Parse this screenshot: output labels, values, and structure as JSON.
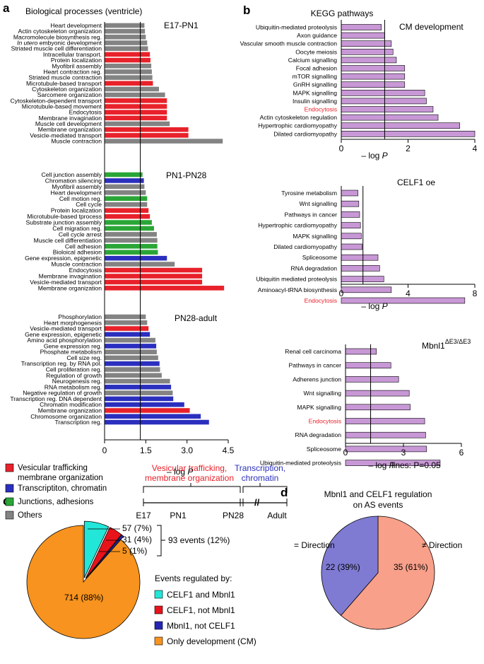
{
  "panel_labels": {
    "a": "a",
    "b": "b",
    "c": "c",
    "d": "d"
  },
  "colors": {
    "vesicular": "#e8212a",
    "transcription": "#2b2fbe",
    "junction": "#2aa637",
    "others": "#838383",
    "kegg": "#c898d6",
    "kegg_highlight": "#e8212a",
    "pie_cyan": "#22e6d7",
    "pie_red": "#e8131a",
    "pie_blue": "#2626b4",
    "pie_orange": "#f7931e",
    "pie_purple": "#7f7bd3",
    "pie_salmon": "#f8a08a"
  },
  "panel_a": {
    "title": "Biological processes (ventricle)",
    "xlabel": "– log P",
    "xlim": [
      0,
      4.5
    ],
    "ticks": [
      0,
      1.5,
      3.0,
      4.5
    ],
    "tick_labels": [
      "0",
      "1.5",
      "3.0",
      "4.5"
    ],
    "threshold": 1.3,
    "legend": [
      {
        "label": "Vesicular trafficking membrane organization",
        "line1": "Vesicular trafficking",
        "line2": "membrane organization",
        "cat": "vesicular"
      },
      {
        "label": "Transcriptiton, chromatin",
        "line1": "Transcriptiton, chromatin",
        "line2": "",
        "cat": "transcription"
      },
      {
        "label": "Junctions, adhesions",
        "line1": "Junctions, adhesions",
        "line2": "",
        "cat": "junction"
      },
      {
        "label": "Others",
        "line1": "Others",
        "line2": "",
        "cat": "others"
      }
    ],
    "timeline": {
      "red_label_1": "Vesicular trafficking,",
      "red_label_2": "membrane organization",
      "blue_label_1": "Transcription,",
      "blue_label_2": "chromatin",
      "stages": [
        "E17",
        "PN1",
        "PN28",
        "Adult"
      ],
      "break_mark": "//"
    },
    "groups": [
      {
        "name": "E17-PN1",
        "bars": [
          {
            "label": "Heart development",
            "value": 1.45,
            "cat": "others"
          },
          {
            "label": "Actin cytoskeleton organization",
            "value": 1.47,
            "cat": "others"
          },
          {
            "label": "Macromolecule biosynthesis reg.",
            "value": 1.5,
            "cat": "others"
          },
          {
            "label": "In utero embyonic development",
            "label_prefix": "In utero",
            "label_suffix": " embyonic development",
            "value": 1.55,
            "cat": "others"
          },
          {
            "label": "Striated muscle cell differentiation",
            "value": 1.58,
            "cat": "others"
          },
          {
            "label": "Intracellular transport.",
            "value": 1.65,
            "cat": "vesicular"
          },
          {
            "label": "Protein localization",
            "value": 1.67,
            "cat": "vesicular"
          },
          {
            "label": "Myofibril assembly",
            "value": 1.7,
            "cat": "others"
          },
          {
            "label": "Heart contraction reg.",
            "value": 1.72,
            "cat": "others"
          },
          {
            "label": "Striated muscle contraction",
            "value": 1.74,
            "cat": "others"
          },
          {
            "label": "Microtubule-based transport",
            "value": 1.76,
            "cat": "vesicular"
          },
          {
            "label": "Cytoskeleton organization",
            "value": 1.98,
            "cat": "others"
          },
          {
            "label": "Sarcomere organization",
            "value": 2.2,
            "cat": "others"
          },
          {
            "label": "Cytoskeleton-dependent transport",
            "value": 2.27,
            "cat": "vesicular"
          },
          {
            "label": "Microtubule-based movement",
            "value": 2.27,
            "cat": "vesicular"
          },
          {
            "label": "Endocytosis",
            "value": 2.27,
            "cat": "vesicular"
          },
          {
            "label": "Membrane invagination",
            "value": 2.27,
            "cat": "vesicular"
          },
          {
            "label": "Muscle cell development",
            "value": 2.37,
            "cat": "others"
          },
          {
            "label": "Membrane organization",
            "value": 3.05,
            "cat": "vesicular"
          },
          {
            "label": "Vesicle-mediated transport",
            "value": 3.05,
            "cat": "vesicular"
          },
          {
            "label": "Muscle contraction",
            "value": 4.3,
            "cat": "others"
          }
        ]
      },
      {
        "name": "PN1-PN28",
        "bars": [
          {
            "label": "Cell junction assembly",
            "value": 1.38,
            "cat": "junction"
          },
          {
            "label": "Chromation silencing",
            "value": 1.43,
            "cat": "transcription"
          },
          {
            "label": "Myofibril assembly",
            "value": 1.45,
            "cat": "others"
          },
          {
            "label": "Heart development",
            "value": 1.5,
            "cat": "others"
          },
          {
            "label": "Cell motion reg.",
            "value": 1.55,
            "cat": "junction"
          },
          {
            "label": "Cell cycle",
            "value": 1.55,
            "cat": "others"
          },
          {
            "label": "Protein localization",
            "value": 1.6,
            "cat": "vesicular"
          },
          {
            "label": "Microtubule-based tprocess",
            "value": 1.65,
            "cat": "vesicular"
          },
          {
            "label": "Substrate junction assembly",
            "value": 1.72,
            "cat": "junction"
          },
          {
            "label": "Cell migration reg.",
            "value": 1.8,
            "cat": "junction"
          },
          {
            "label": "Cell cycle arrest",
            "value": 1.9,
            "cat": "others"
          },
          {
            "label": "Muscle cell differentiation",
            "value": 1.92,
            "cat": "others"
          },
          {
            "label": "Cell adhesion",
            "value": 1.92,
            "cat": "junction"
          },
          {
            "label": "Bioloical adhesion",
            "value": 1.94,
            "cat": "junction"
          },
          {
            "label": "Gene expression, epigenetic",
            "value": 2.27,
            "cat": "transcription"
          },
          {
            "label": "Muscle contraction",
            "value": 2.55,
            "cat": "others"
          },
          {
            "label": "Endocytosis",
            "value": 3.55,
            "cat": "vesicular"
          },
          {
            "label": "Membrane invagination",
            "value": 3.55,
            "cat": "vesicular"
          },
          {
            "label": "Vesicle-mediated transport",
            "value": 3.55,
            "cat": "vesicular"
          },
          {
            "label": "Membrane organization",
            "value": 4.35,
            "cat": "vesicular"
          }
        ]
      },
      {
        "name": "PN28-adult",
        "bars": [
          {
            "label": "Phosphorylation",
            "value": 1.5,
            "cat": "others"
          },
          {
            "label": "Heart morphogenesis",
            "value": 1.55,
            "cat": "others"
          },
          {
            "label": "Vesicle-mediated transport",
            "value": 1.6,
            "cat": "vesicular"
          },
          {
            "label": "Gene expression, epigenetic",
            "value": 1.65,
            "cat": "transcription"
          },
          {
            "label": "Amino acid phosphorylation",
            "value": 1.85,
            "cat": "others"
          },
          {
            "label": "Gene expression reg.",
            "value": 1.88,
            "cat": "transcription"
          },
          {
            "label": "Phosphate metabolism",
            "value": 1.9,
            "cat": "others"
          },
          {
            "label": "Cell size reg.",
            "value": 1.95,
            "cat": "others"
          },
          {
            "label": "Transcription reg. by RNA pol.",
            "value": 2.0,
            "cat": "transcription"
          },
          {
            "label": "Cell proliferation reg.",
            "value": 2.02,
            "cat": "others"
          },
          {
            "label": "Regulation of growth",
            "value": 2.08,
            "cat": "others"
          },
          {
            "label": "Neurogenesis reg.",
            "value": 2.38,
            "cat": "others"
          },
          {
            "label": "RNA metabolism reg.",
            "value": 2.42,
            "cat": "transcription"
          },
          {
            "label": "Negative regulation of growth",
            "value": 2.48,
            "cat": "others"
          },
          {
            "label": "Transcription reg. DNA dependent",
            "value": 2.5,
            "cat": "transcription"
          },
          {
            "label": "Chromatin modification",
            "value": 2.9,
            "cat": "transcription"
          },
          {
            "label": "Membrane organization",
            "value": 3.1,
            "cat": "vesicular"
          },
          {
            "label": "Chromosome organization",
            "value": 3.5,
            "cat": "transcription"
          },
          {
            "label": "Transcription reg.",
            "value": 3.8,
            "cat": "transcription"
          }
        ]
      }
    ]
  },
  "panel_b": {
    "title": "KEGG pathways",
    "xlabel": "– log P",
    "threshold": 1.3,
    "note": "lines: P=0.05",
    "charts": [
      {
        "name": "CM development",
        "xlim": [
          0,
          4
        ],
        "ticks": [
          0,
          2,
          4
        ],
        "tick_labels": [
          "0",
          "2",
          "4"
        ],
        "bars": [
          {
            "label": "Ubiquitin-mediated proteolysis",
            "value": 1.2
          },
          {
            "label": "Axon guidance",
            "value": 1.3
          },
          {
            "label": "Vascular smooth muscle contraction",
            "value": 1.5
          },
          {
            "label": "Oocyte meiosis",
            "value": 1.55
          },
          {
            "label": "Calcium signalling",
            "value": 1.65
          },
          {
            "label": "Focal adhesion",
            "value": 1.9
          },
          {
            "label": "mTOR signalling",
            "value": 1.9
          },
          {
            "label": "GnRH signalling",
            "value": 1.9
          },
          {
            "label": "MAPK signalling",
            "value": 2.5
          },
          {
            "label": "Insulin signalling",
            "value": 2.55
          },
          {
            "label": "Endocytosis",
            "value": 2.75,
            "highlight": true
          },
          {
            "label": "Actin cytoskeleton regulation",
            "value": 2.9
          },
          {
            "label": "Hypertrophic cardiomyopathy",
            "value": 3.55
          },
          {
            "label": "Dilated cardiomyopathy",
            "value": 4.0
          }
        ]
      },
      {
        "name": "CELF1 oe",
        "xlim": [
          0,
          8
        ],
        "ticks": [
          0,
          4,
          8
        ],
        "tick_labels": [
          "0",
          "4",
          "8"
        ],
        "bars": [
          {
            "label": "Tyrosine metabolism",
            "value": 1.0
          },
          {
            "label": "Wnt signalling",
            "value": 1.05
          },
          {
            "label": "Pathways in cancer",
            "value": 1.1
          },
          {
            "label": "Hypertrophic cardiomyopathy",
            "value": 1.15
          },
          {
            "label": "MAPK signalling",
            "value": 1.2
          },
          {
            "label": "Dilated cardiomyopathy",
            "value": 1.25
          },
          {
            "label": "Spliceosome",
            "value": 2.2
          },
          {
            "label": "RNA degradation",
            "value": 2.3
          },
          {
            "label": "Ubiquitin mediated proteolysis",
            "value": 2.55
          },
          {
            "label": "Aminoacyl-tRNA biosynthesis",
            "value": 3.0
          },
          {
            "label": "Endocytosis",
            "value": 7.4,
            "highlight": true
          }
        ]
      },
      {
        "name": "Mbnl1",
        "name_sup": "ΔE3/ΔE3",
        "xlim": [
          0,
          6
        ],
        "ticks": [
          0,
          3,
          6
        ],
        "tick_labels": [
          "0",
          "3",
          "6"
        ],
        "bars": [
          {
            "label": "Renal cell carcinoma",
            "value": 1.6
          },
          {
            "label": "Pathways in cancer",
            "value": 2.35
          },
          {
            "label": "Adherens junction",
            "value": 2.75
          },
          {
            "label": "Wnt signalling",
            "value": 3.3
          },
          {
            "label": "MAPK signalling",
            "value": 3.35
          },
          {
            "label": "Endocytosis",
            "value": 4.1,
            "highlight": true
          },
          {
            "label": "RNA degradation",
            "value": 4.15
          },
          {
            "label": "Spliceosome",
            "value": 4.2
          },
          {
            "label": "Ubiquitin-mediated proteolysis",
            "value": 4.9
          }
        ]
      }
    ]
  },
  "panel_c": {
    "type": "pie",
    "slices": [
      {
        "label": "CELF1 and Mbnl1",
        "value": 57,
        "text": "57 (7%)",
        "color": "pie_cyan"
      },
      {
        "label": "CELF1, not Mbnl1",
        "value": 31,
        "text": "31 (4%)",
        "color": "pie_red"
      },
      {
        "label": "Mbnl1, not CELF1",
        "value": 5,
        "text": "5 (1%)",
        "color": "pie_blue"
      },
      {
        "label": "Only development (CM)",
        "value": 714,
        "text": "714 (88%)",
        "color": "pie_orange"
      }
    ],
    "bracket_label": "93 events (12%)",
    "legend_title": "Events regulated by:"
  },
  "panel_d": {
    "type": "pie",
    "title_line1": "Mbnl1 and CELF1 regulation",
    "title_line2": "on AS events",
    "slices": [
      {
        "label": "= Direction",
        "value": 22,
        "text": "22 (39%)",
        "color": "pie_purple"
      },
      {
        "label": "≠ Direction",
        "value": 35,
        "text": "35 (61%)",
        "color": "pie_salmon"
      }
    ]
  }
}
